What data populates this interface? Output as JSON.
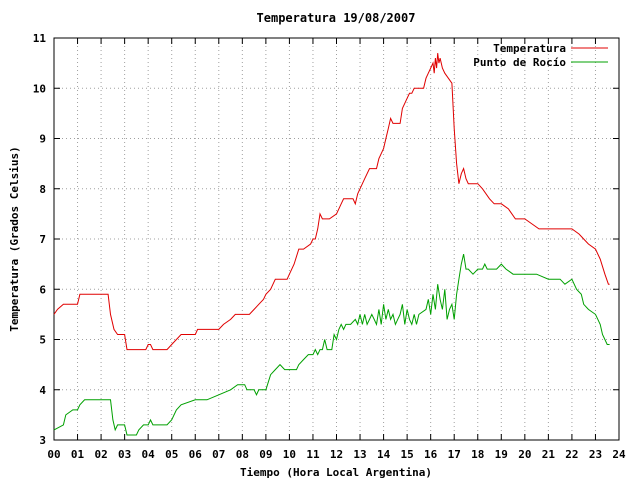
{
  "chart_data": {
    "type": "line",
    "title": "Temperatura 19/08/2007",
    "xlabel": "Tiempo (Hora Local Argentina)",
    "ylabel": "Temperatura (Grados Celsius)",
    "xlim": [
      0,
      24
    ],
    "ylim": [
      3,
      11
    ],
    "xticks": [
      "00",
      "01",
      "02",
      "03",
      "04",
      "05",
      "06",
      "07",
      "08",
      "09",
      "10",
      "11",
      "12",
      "13",
      "14",
      "15",
      "16",
      "17",
      "18",
      "19",
      "20",
      "21",
      "22",
      "23",
      "24"
    ],
    "yticks": [
      3,
      4,
      5,
      6,
      7,
      8,
      9,
      10,
      11
    ],
    "grid": true,
    "legend_position": "top-right",
    "series": [
      {
        "name": "Temperatura",
        "color": "#e00000",
        "points": [
          [
            0.0,
            5.5
          ],
          [
            0.15,
            5.6
          ],
          [
            0.4,
            5.7
          ],
          [
            0.55,
            5.7
          ],
          [
            1.0,
            5.7
          ],
          [
            1.1,
            5.9
          ],
          [
            1.5,
            5.9
          ],
          [
            2.0,
            5.9
          ],
          [
            2.3,
            5.9
          ],
          [
            2.4,
            5.5
          ],
          [
            2.55,
            5.2
          ],
          [
            2.7,
            5.1
          ],
          [
            3.0,
            5.1
          ],
          [
            3.1,
            4.8
          ],
          [
            3.3,
            4.8
          ],
          [
            3.6,
            4.8
          ],
          [
            3.9,
            4.8
          ],
          [
            4.0,
            4.9
          ],
          [
            4.1,
            4.9
          ],
          [
            4.2,
            4.8
          ],
          [
            4.5,
            4.8
          ],
          [
            4.8,
            4.8
          ],
          [
            5.0,
            4.9
          ],
          [
            5.2,
            5.0
          ],
          [
            5.4,
            5.1
          ],
          [
            5.6,
            5.1
          ],
          [
            6.0,
            5.1
          ],
          [
            6.1,
            5.2
          ],
          [
            6.5,
            5.2
          ],
          [
            7.0,
            5.2
          ],
          [
            7.2,
            5.3
          ],
          [
            7.5,
            5.4
          ],
          [
            7.7,
            5.5
          ],
          [
            8.0,
            5.5
          ],
          [
            8.3,
            5.5
          ],
          [
            8.5,
            5.6
          ],
          [
            8.7,
            5.7
          ],
          [
            8.9,
            5.8
          ],
          [
            9.0,
            5.9
          ],
          [
            9.2,
            6.0
          ],
          [
            9.4,
            6.2
          ],
          [
            9.7,
            6.2
          ],
          [
            9.9,
            6.2
          ],
          [
            10.0,
            6.3
          ],
          [
            10.2,
            6.5
          ],
          [
            10.4,
            6.8
          ],
          [
            10.6,
            6.8
          ],
          [
            10.9,
            6.9
          ],
          [
            11.0,
            7.0
          ],
          [
            11.1,
            7.0
          ],
          [
            11.2,
            7.2
          ],
          [
            11.3,
            7.5
          ],
          [
            11.4,
            7.4
          ],
          [
            11.7,
            7.4
          ],
          [
            12.0,
            7.5
          ],
          [
            12.2,
            7.7
          ],
          [
            12.3,
            7.8
          ],
          [
            12.7,
            7.8
          ],
          [
            12.8,
            7.7
          ],
          [
            12.9,
            7.9
          ],
          [
            13.0,
            8.0
          ],
          [
            13.2,
            8.2
          ],
          [
            13.4,
            8.4
          ],
          [
            13.7,
            8.4
          ],
          [
            13.8,
            8.6
          ],
          [
            14.0,
            8.8
          ],
          [
            14.1,
            9.0
          ],
          [
            14.2,
            9.2
          ],
          [
            14.3,
            9.4
          ],
          [
            14.4,
            9.3
          ],
          [
            14.5,
            9.3
          ],
          [
            14.7,
            9.3
          ],
          [
            14.8,
            9.6
          ],
          [
            14.9,
            9.7
          ],
          [
            15.0,
            9.8
          ],
          [
            15.1,
            9.9
          ],
          [
            15.2,
            9.9
          ],
          [
            15.3,
            10.0
          ],
          [
            15.7,
            10.0
          ],
          [
            15.8,
            10.2
          ],
          [
            15.9,
            10.3
          ],
          [
            16.0,
            10.4
          ],
          [
            16.1,
            10.5
          ],
          [
            16.15,
            10.3
          ],
          [
            16.2,
            10.6
          ],
          [
            16.25,
            10.4
          ],
          [
            16.3,
            10.7
          ],
          [
            16.35,
            10.5
          ],
          [
            16.4,
            10.6
          ],
          [
            16.5,
            10.4
          ],
          [
            16.6,
            10.3
          ],
          [
            16.9,
            10.1
          ],
          [
            17.0,
            9.2
          ],
          [
            17.1,
            8.5
          ],
          [
            17.2,
            8.1
          ],
          [
            17.3,
            8.3
          ],
          [
            17.4,
            8.4
          ],
          [
            17.5,
            8.2
          ],
          [
            17.6,
            8.1
          ],
          [
            18.0,
            8.1
          ],
          [
            18.2,
            8.0
          ],
          [
            18.5,
            7.8
          ],
          [
            18.7,
            7.7
          ],
          [
            19.0,
            7.7
          ],
          [
            19.3,
            7.6
          ],
          [
            19.6,
            7.4
          ],
          [
            20.0,
            7.4
          ],
          [
            20.3,
            7.3
          ],
          [
            20.6,
            7.2
          ],
          [
            21.0,
            7.2
          ],
          [
            21.5,
            7.2
          ],
          [
            22.0,
            7.2
          ],
          [
            22.3,
            7.1
          ],
          [
            22.5,
            7.0
          ],
          [
            22.7,
            6.9
          ],
          [
            23.0,
            6.8
          ],
          [
            23.2,
            6.6
          ],
          [
            23.4,
            6.3
          ],
          [
            23.55,
            6.1
          ],
          [
            23.6,
            6.1
          ]
        ]
      },
      {
        "name": "Punto de Rocío",
        "color": "#00a000",
        "points": [
          [
            0.0,
            3.2
          ],
          [
            0.4,
            3.3
          ],
          [
            0.5,
            3.5
          ],
          [
            0.8,
            3.6
          ],
          [
            1.0,
            3.6
          ],
          [
            1.1,
            3.7
          ],
          [
            1.3,
            3.8
          ],
          [
            2.0,
            3.8
          ],
          [
            2.4,
            3.8
          ],
          [
            2.5,
            3.4
          ],
          [
            2.6,
            3.2
          ],
          [
            2.7,
            3.3
          ],
          [
            2.9,
            3.3
          ],
          [
            3.0,
            3.3
          ],
          [
            3.1,
            3.1
          ],
          [
            3.3,
            3.1
          ],
          [
            3.5,
            3.1
          ],
          [
            3.6,
            3.2
          ],
          [
            3.8,
            3.3
          ],
          [
            4.0,
            3.3
          ],
          [
            4.1,
            3.4
          ],
          [
            4.2,
            3.3
          ],
          [
            4.5,
            3.3
          ],
          [
            4.8,
            3.3
          ],
          [
            5.0,
            3.4
          ],
          [
            5.2,
            3.6
          ],
          [
            5.4,
            3.7
          ],
          [
            6.0,
            3.8
          ],
          [
            6.5,
            3.8
          ],
          [
            7.0,
            3.9
          ],
          [
            7.5,
            4.0
          ],
          [
            7.8,
            4.1
          ],
          [
            8.1,
            4.1
          ],
          [
            8.2,
            4.0
          ],
          [
            8.5,
            4.0
          ],
          [
            8.6,
            3.9
          ],
          [
            8.7,
            4.0
          ],
          [
            9.0,
            4.0
          ],
          [
            9.2,
            4.3
          ],
          [
            9.4,
            4.4
          ],
          [
            9.6,
            4.5
          ],
          [
            9.8,
            4.4
          ],
          [
            10.0,
            4.4
          ],
          [
            10.3,
            4.4
          ],
          [
            10.4,
            4.5
          ],
          [
            10.6,
            4.6
          ],
          [
            10.8,
            4.7
          ],
          [
            11.0,
            4.7
          ],
          [
            11.1,
            4.8
          ],
          [
            11.2,
            4.7
          ],
          [
            11.3,
            4.8
          ],
          [
            11.4,
            4.8
          ],
          [
            11.5,
            5.0
          ],
          [
            11.6,
            4.8
          ],
          [
            11.8,
            4.8
          ],
          [
            11.9,
            5.1
          ],
          [
            12.0,
            5.0
          ],
          [
            12.1,
            5.2
          ],
          [
            12.2,
            5.3
          ],
          [
            12.3,
            5.2
          ],
          [
            12.4,
            5.3
          ],
          [
            12.6,
            5.3
          ],
          [
            12.8,
            5.4
          ],
          [
            12.9,
            5.3
          ],
          [
            13.0,
            5.5
          ],
          [
            13.1,
            5.3
          ],
          [
            13.2,
            5.5
          ],
          [
            13.3,
            5.3
          ],
          [
            13.4,
            5.4
          ],
          [
            13.5,
            5.5
          ],
          [
            13.6,
            5.4
          ],
          [
            13.7,
            5.3
          ],
          [
            13.8,
            5.6
          ],
          [
            13.9,
            5.3
          ],
          [
            14.0,
            5.7
          ],
          [
            14.1,
            5.4
          ],
          [
            14.2,
            5.6
          ],
          [
            14.3,
            5.4
          ],
          [
            14.4,
            5.5
          ],
          [
            14.5,
            5.3
          ],
          [
            14.6,
            5.4
          ],
          [
            14.7,
            5.5
          ],
          [
            14.8,
            5.7
          ],
          [
            14.9,
            5.3
          ],
          [
            15.0,
            5.6
          ],
          [
            15.1,
            5.4
          ],
          [
            15.2,
            5.3
          ],
          [
            15.3,
            5.5
          ],
          [
            15.4,
            5.3
          ],
          [
            15.5,
            5.5
          ],
          [
            15.8,
            5.6
          ],
          [
            15.9,
            5.8
          ],
          [
            16.0,
            5.5
          ],
          [
            16.1,
            5.9
          ],
          [
            16.2,
            5.6
          ],
          [
            16.3,
            6.1
          ],
          [
            16.4,
            5.8
          ],
          [
            16.5,
            5.6
          ],
          [
            16.6,
            6.0
          ],
          [
            16.7,
            5.4
          ],
          [
            16.8,
            5.6
          ],
          [
            16.9,
            5.7
          ],
          [
            17.0,
            5.4
          ],
          [
            17.1,
            5.9
          ],
          [
            17.2,
            6.2
          ],
          [
            17.3,
            6.5
          ],
          [
            17.4,
            6.7
          ],
          [
            17.5,
            6.4
          ],
          [
            17.6,
            6.4
          ],
          [
            17.8,
            6.3
          ],
          [
            18.0,
            6.4
          ],
          [
            18.2,
            6.4
          ],
          [
            18.3,
            6.5
          ],
          [
            18.4,
            6.4
          ],
          [
            18.6,
            6.4
          ],
          [
            18.8,
            6.4
          ],
          [
            19.0,
            6.5
          ],
          [
            19.2,
            6.4
          ],
          [
            19.5,
            6.3
          ],
          [
            20.0,
            6.3
          ],
          [
            20.5,
            6.3
          ],
          [
            21.0,
            6.2
          ],
          [
            21.5,
            6.2
          ],
          [
            21.7,
            6.1
          ],
          [
            22.0,
            6.2
          ],
          [
            22.2,
            6.0
          ],
          [
            22.4,
            5.9
          ],
          [
            22.5,
            5.7
          ],
          [
            22.7,
            5.6
          ],
          [
            23.0,
            5.5
          ],
          [
            23.2,
            5.3
          ],
          [
            23.3,
            5.1
          ],
          [
            23.4,
            5.0
          ],
          [
            23.5,
            4.9
          ],
          [
            23.6,
            4.9
          ]
        ]
      }
    ]
  }
}
